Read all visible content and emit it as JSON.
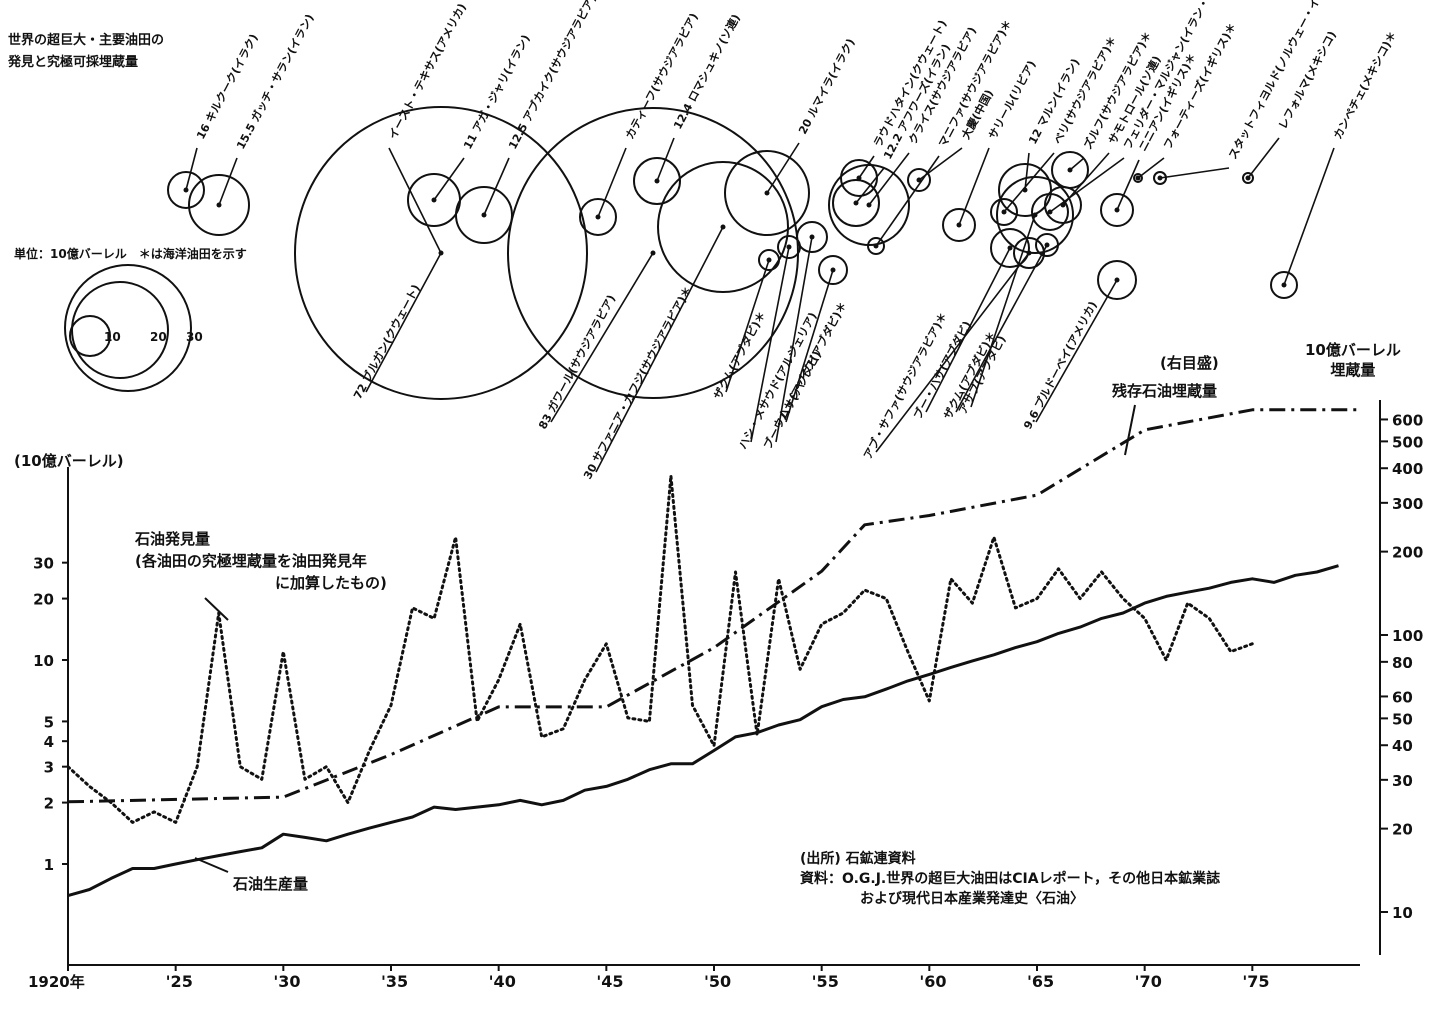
{
  "chart_data": {
    "type": "line",
    "title": [
      "世界の超巨大・主要油田の",
      "発見と究極可採埋蔵量"
    ],
    "bubble_unit_note": "単位：10億バーレル　＊は海洋油田を示す",
    "bubble_scale": [
      10,
      20,
      30
    ],
    "bubbles": [
      {
        "label": "キルクーク(イラク)",
        "size": 16
      },
      {
        "label": "ガッチ・サラン(イラン)",
        "size": 15.5
      },
      {
        "label": "イースト・テキサス(アメリカ)",
        "size": null
      },
      {
        "label": "アガ・ジャリ(イラン)",
        "size": 11
      },
      {
        "label": "アブカイク(サウジアラビア)",
        "size": 12.5
      },
      {
        "label": "カティーフ(サウジアラビア)",
        "size": null
      },
      {
        "label": "ロマシュキノ(ソ連)",
        "size": 12.4
      },
      {
        "label": "ルマイラ(イラク)",
        "size": 20
      },
      {
        "label": "ラウドハタイン(クウェート)",
        "size": null
      },
      {
        "label": "アフワーズ(イラン)",
        "size": 12.2
      },
      {
        "label": "クライス(サウジアラビア)",
        "size": null
      },
      {
        "label": "マニファ(サウジアラビア)＊",
        "size": null
      },
      {
        "label": "大慶(中国)",
        "size": null
      },
      {
        "label": "サリール(リビア)",
        "size": null
      },
      {
        "label": "マルン(イラン)",
        "size": 12
      },
      {
        "label": "ベリ(サウジアラビア)＊",
        "size": null
      },
      {
        "label": "ズルフ(サウジアラビア)＊",
        "size": null
      },
      {
        "label": "サモトロール(ソ連)",
        "size": null
      },
      {
        "label": "フェリダー・マルジャン(イラン・サウジアラビア)＊",
        "size": null
      },
      {
        "label": "ニニアン(イギリス)＊",
        "size": null
      },
      {
        "label": "フォーティーズ(イギリス)＊",
        "size": null
      },
      {
        "label": "スタットフィヨルド(ノルウェー・イギリス)＊",
        "size": null
      },
      {
        "label": "レフォルマ(メキシコ)",
        "size": null
      },
      {
        "label": "カンペチェ(メキシコ)＊",
        "size": null
      },
      {
        "label": "ブルガン(クウェート)",
        "size": 72
      },
      {
        "label": "ガワール(サウジアラビア)",
        "size": 83
      },
      {
        "label": "サファニア・カフジ(サウジアラビア)＊",
        "size": 30
      },
      {
        "label": "ザクム(アブダビ)＊",
        "size": null
      },
      {
        "label": "ハシ・メサウド(アルジェリア)",
        "size": null
      },
      {
        "label": "ブー・ハサ(アブダビ)",
        "size": null
      },
      {
        "label": "ウム・シャイフ(アブダビ)＊",
        "size": null
      },
      {
        "label": "ブー・ハサ(アブダビ)",
        "size": null
      },
      {
        "label": "アブ・サファ(サウジアラビア)＊",
        "size": null
      },
      {
        "label": "ザクム(アブダビ)＊",
        "size": null
      },
      {
        "label": "アサブ(アブダビ)",
        "size": null
      },
      {
        "label": "プルドーベイ(アメリカ)",
        "size": 9.6
      }
    ],
    "axes": {
      "x": {
        "label": "",
        "ticks": [
          "1920年",
          "'25",
          "'30",
          "'35",
          "'40",
          "'45",
          "'50",
          "'55",
          "'60",
          "'65",
          "'70",
          "'75"
        ],
        "range": [
          1920,
          1980
        ]
      },
      "y_left": {
        "label": "(10億バーレル)",
        "scale": "log",
        "range": [
          0.55,
          70
        ],
        "ticks": [
          1,
          2,
          3,
          4,
          5,
          10,
          20,
          30
        ]
      },
      "y_right": {
        "label": [
          "10億バーレル",
          "埋蔵量"
        ],
        "scale_note": "(右目盛)",
        "scale": "log",
        "range": [
          8,
          800
        ],
        "ticks": [
          10,
          20,
          30,
          40,
          50,
          60,
          80,
          100,
          200,
          300,
          400,
          500,
          600
        ]
      }
    },
    "series": [
      {
        "name": "石油発見量",
        "name_note": [
          "(各油田の究極埋蔵量を油田発見年",
          "に加算したもの)"
        ],
        "axis": "left",
        "style": "dotted",
        "x": [
          1920,
          1921,
          1922,
          1923,
          1924,
          1925,
          1926,
          1927,
          1928,
          1929,
          1930,
          1931,
          1932,
          1933,
          1934,
          1935,
          1936,
          1937,
          1938,
          1939,
          1940,
          1941,
          1942,
          1943,
          1944,
          1945,
          1946,
          1947,
          1948,
          1949,
          1950,
          1951,
          1952,
          1953,
          1954,
          1955,
          1956,
          1957,
          1958,
          1959,
          1960,
          1961,
          1962,
          1963,
          1964,
          1965,
          1966,
          1967,
          1968,
          1969,
          1970,
          1971,
          1972,
          1973,
          1974,
          1975
        ],
        "values": [
          3,
          2.4,
          2,
          1.6,
          1.8,
          1.6,
          3,
          17,
          3,
          2.6,
          11,
          2.6,
          3,
          2,
          3.6,
          6,
          18,
          16,
          40,
          5,
          8,
          15,
          4.2,
          4.6,
          8,
          12,
          5.2,
          5,
          80,
          6,
          3.8,
          27,
          4.3,
          25,
          9,
          15,
          17,
          22,
          20,
          11,
          6.3,
          25,
          19,
          40,
          18,
          20,
          28,
          20,
          27,
          20,
          16,
          10,
          19,
          16,
          11,
          12
        ]
      },
      {
        "name": "残存石油埋蔵量",
        "axis": "right",
        "style": "dash-dot",
        "x": [
          1920,
          1930,
          1935,
          1940,
          1945,
          1950,
          1955,
          1957,
          1960,
          1965,
          1970,
          1975,
          1980
        ],
        "values": [
          25,
          26,
          37,
          55,
          55,
          90,
          170,
          250,
          270,
          320,
          550,
          650,
          650
        ]
      },
      {
        "name": "石油生産量",
        "axis": "left",
        "style": "solid",
        "x": [
          1920,
          1921,
          1922,
          1923,
          1924,
          1925,
          1926,
          1927,
          1928,
          1929,
          1930,
          1931,
          1932,
          1933,
          1934,
          1935,
          1936,
          1937,
          1938,
          1939,
          1940,
          1941,
          1942,
          1943,
          1944,
          1945,
          1946,
          1947,
          1948,
          1949,
          1950,
          1951,
          1952,
          1953,
          1954,
          1955,
          1956,
          1957,
          1958,
          1959,
          1960,
          1961,
          1962,
          1963,
          1964,
          1965,
          1966,
          1967,
          1968,
          1969,
          1970,
          1971,
          1972,
          1973,
          1974,
          1975,
          1976,
          1977,
          1978,
          1979
        ],
        "values": [
          0.7,
          0.75,
          0.85,
          0.95,
          0.95,
          1,
          1.05,
          1.1,
          1.15,
          1.2,
          1.4,
          1.35,
          1.3,
          1.4,
          1.5,
          1.6,
          1.7,
          1.9,
          1.85,
          1.9,
          1.95,
          2.05,
          1.95,
          2.05,
          2.3,
          2.4,
          2.6,
          2.9,
          3.1,
          3.1,
          3.6,
          4.2,
          4.4,
          4.8,
          5.1,
          5.9,
          6.4,
          6.6,
          7.2,
          7.9,
          8.5,
          9.2,
          9.9,
          10.6,
          11.5,
          12.3,
          13.5,
          14.5,
          16,
          17,
          19,
          20.5,
          21.5,
          22.5,
          24,
          25,
          24,
          26,
          27,
          29
        ]
      }
    ],
    "source": [
      "(出所) 石鉱連資料",
      "資料：O.G.J.世界の超巨大油田はCIAレポート，その他日本鉱業誌",
      "および現代日本産業発達史〈石油〉"
    ]
  }
}
